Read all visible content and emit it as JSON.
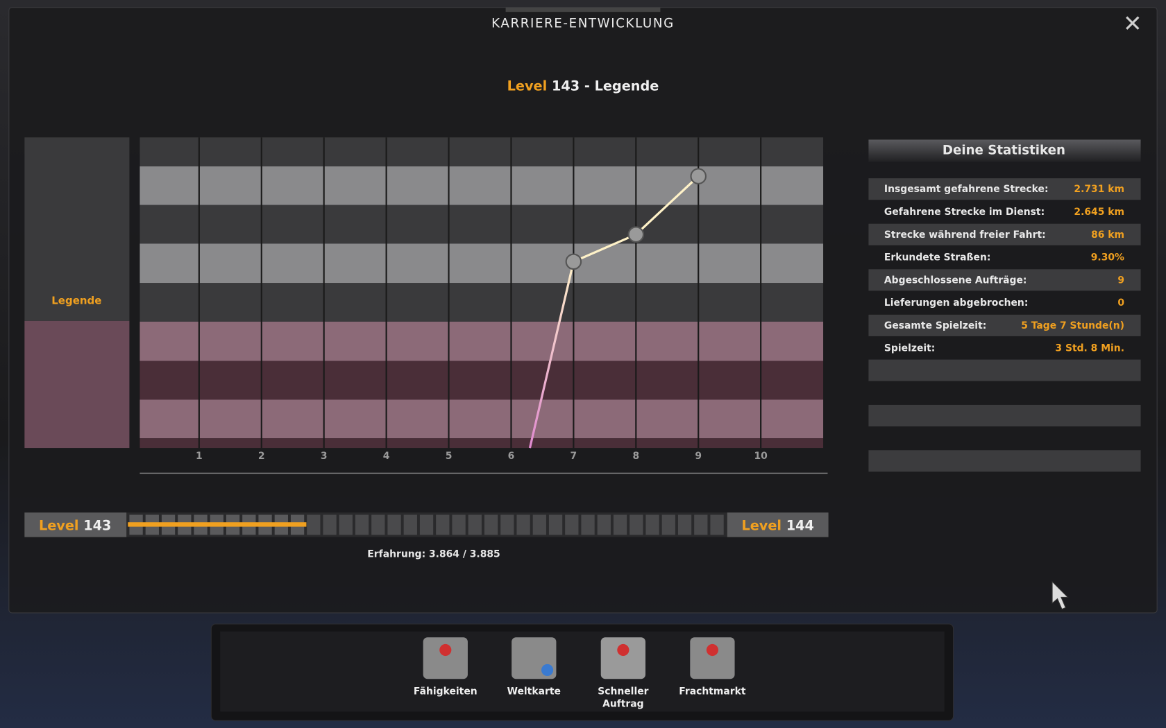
{
  "header": {
    "title": "KARRIERE-ENTWICKLUNG"
  },
  "level_heading": {
    "word": "Level",
    "level": "143",
    "suffix": "- Legende"
  },
  "legend_label": "Legende",
  "career_chart": {
    "type": "line",
    "x": [
      6.3,
      7,
      8,
      9
    ],
    "values": [
      0,
      4.8,
      5.5,
      7
    ],
    "xlim": [
      0.05,
      11.0
    ],
    "ylim": [
      0,
      8
    ],
    "xticks": [
      1,
      2,
      3,
      4,
      5,
      6,
      7,
      8,
      9,
      10
    ]
  },
  "stats": {
    "title": "Deine Statistiken",
    "rows": [
      [
        "Insgesamt gefahrene Strecke:",
        "2.731 km"
      ],
      [
        "Gefahrene Strecke im Dienst:",
        "2.645 km"
      ],
      [
        "Strecke während freier Fahrt:",
        "86 km"
      ],
      [
        "Erkundete Straßen:",
        "9.30%"
      ],
      [
        "Abgeschlossene Aufträge:",
        "9"
      ],
      [
        "Lieferungen abgebrochen:",
        "0"
      ],
      [
        "Gesamte Spielzeit:",
        "5 Tage 7 Stunde(n)"
      ],
      [
        "Spielzeit:",
        "3 Std. 8 Min."
      ]
    ]
  },
  "progress": {
    "current": {
      "word": "Level",
      "level": "143"
    },
    "next": {
      "word": "Level",
      "level": "144"
    },
    "experience": "Erfahrung: 3.864 / 3.885"
  },
  "menu": [
    {
      "label": [
        "Fähigkeiten"
      ]
    },
    {
      "label": [
        "Weltkarte"
      ]
    },
    {
      "label": [
        "Schneller",
        "Auftrag"
      ]
    },
    {
      "label": [
        "Frachtmarkt"
      ]
    }
  ]
}
